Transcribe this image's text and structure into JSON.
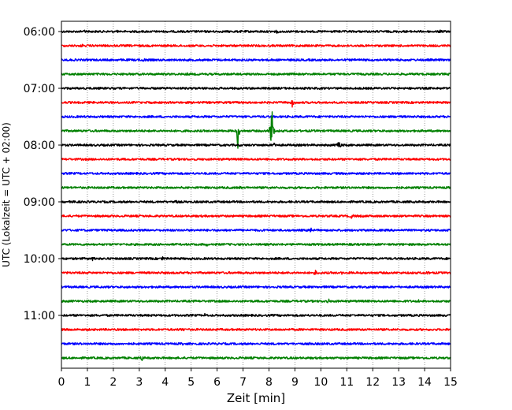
{
  "chart_data": {
    "type": "line",
    "title": "",
    "xlabel": "Zeit  [min]",
    "ylabel": "UTC (Lokalzeit = UTC + 02:00)",
    "xlim": [
      0,
      15
    ],
    "x_ticks": [
      "0",
      "1",
      "2",
      "3",
      "4",
      "5",
      "6",
      "7",
      "8",
      "9",
      "10",
      "11",
      "12",
      "13",
      "14",
      "15"
    ],
    "y_tick_labels": [
      "06:00",
      "07:00",
      "08:00",
      "09:00",
      "10:00",
      "11:00"
    ],
    "grid": "vertical dotted",
    "rows_per_hour": 4,
    "minutes_per_row": 15,
    "start_time": "06:00",
    "row_colors": [
      "#000000",
      "#ff0000",
      "#0000ff",
      "#008000"
    ],
    "series": [
      {
        "start": "06:00",
        "color": "#000000",
        "events": [
          {
            "x": 0.9,
            "amp": 3
          },
          {
            "x": 2.2,
            "amp": 3
          },
          {
            "x": 8.3,
            "amp": 2
          },
          {
            "x": 10.7,
            "amp": 2
          },
          {
            "x": 14.6,
            "amp": 3
          }
        ]
      },
      {
        "start": "06:15",
        "color": "#ff0000",
        "events": [
          {
            "x": 0.8,
            "amp": 2
          },
          {
            "x": 9.3,
            "amp": 2
          }
        ]
      },
      {
        "start": "06:30",
        "color": "#0000ff",
        "events": [
          {
            "x": 3.2,
            "amp": 3
          }
        ]
      },
      {
        "start": "06:45",
        "color": "#008000",
        "events": [
          {
            "x": 4.9,
            "amp": 3
          },
          {
            "x": 9.0,
            "amp": 2
          }
        ]
      },
      {
        "start": "07:00",
        "color": "#000000",
        "events": []
      },
      {
        "start": "07:15",
        "color": "#ff0000",
        "events": [
          {
            "x": 8.9,
            "amp": 6
          },
          {
            "x": 3.2,
            "amp": 2
          }
        ]
      },
      {
        "start": "07:30",
        "color": "#0000ff",
        "events": [
          {
            "x": 13.0,
            "amp": 2
          }
        ]
      },
      {
        "start": "07:45",
        "color": "#008000",
        "events": [
          {
            "x": 6.8,
            "amp": 25
          },
          {
            "x": 8.1,
            "amp": 55
          }
        ]
      },
      {
        "start": "08:00",
        "color": "#000000",
        "events": [
          {
            "x": 10.7,
            "amp": 11
          },
          {
            "x": 8.2,
            "amp": 3
          }
        ]
      },
      {
        "start": "08:15",
        "color": "#ff0000",
        "events": []
      },
      {
        "start": "08:30",
        "color": "#0000ff",
        "events": []
      },
      {
        "start": "08:45",
        "color": "#008000",
        "events": [
          {
            "x": 4.7,
            "amp": 2
          },
          {
            "x": 6.9,
            "amp": 3
          }
        ]
      },
      {
        "start": "09:00",
        "color": "#000000",
        "events": [
          {
            "x": 0.5,
            "amp": 3
          },
          {
            "x": 4.4,
            "amp": 3
          }
        ]
      },
      {
        "start": "09:15",
        "color": "#ff0000",
        "events": [
          {
            "x": 11.2,
            "amp": 4
          },
          {
            "x": 7.0,
            "amp": 2
          }
        ]
      },
      {
        "start": "09:30",
        "color": "#0000ff",
        "events": [
          {
            "x": 9.6,
            "amp": 5
          },
          {
            "x": 11.7,
            "amp": 2
          }
        ]
      },
      {
        "start": "09:45",
        "color": "#008000",
        "events": [
          {
            "x": 5.6,
            "amp": 2
          }
        ]
      },
      {
        "start": "10:00",
        "color": "#000000",
        "events": [
          {
            "x": 1.2,
            "amp": 6
          },
          {
            "x": 3.9,
            "amp": 3
          }
        ]
      },
      {
        "start": "10:15",
        "color": "#ff0000",
        "events": [
          {
            "x": 9.8,
            "amp": 5
          },
          {
            "x": 10.8,
            "amp": 3
          },
          {
            "x": 14.1,
            "amp": 3
          }
        ]
      },
      {
        "start": "10:30",
        "color": "#0000ff",
        "events": [
          {
            "x": 12.0,
            "amp": 2
          }
        ]
      },
      {
        "start": "10:45",
        "color": "#008000",
        "events": [
          {
            "x": 10.3,
            "amp": 3
          },
          {
            "x": 13.8,
            "amp": 2
          }
        ]
      },
      {
        "start": "11:00",
        "color": "#000000",
        "events": [
          {
            "x": 5.5,
            "amp": 3
          }
        ]
      },
      {
        "start": "11:15",
        "color": "#ff0000",
        "events": [
          {
            "x": 4.7,
            "amp": 4
          }
        ]
      },
      {
        "start": "11:30",
        "color": "#0000ff",
        "events": [
          {
            "x": 4.7,
            "amp": 2
          },
          {
            "x": 9.6,
            "amp": 2
          }
        ]
      },
      {
        "start": "11:45",
        "color": "#008000",
        "events": [
          {
            "x": 3.1,
            "amp": 4
          }
        ]
      }
    ]
  }
}
